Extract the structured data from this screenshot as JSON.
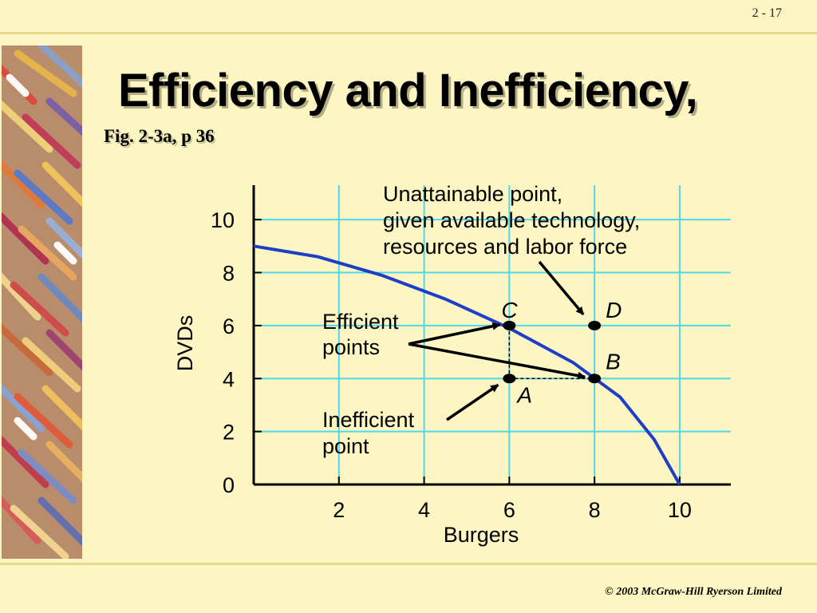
{
  "slide": {
    "number": "2 - 17",
    "title": "Efficiency and Inefficiency,",
    "subtitle": "Fig. 2-3a, p 36",
    "copyright": "© 2003 McGraw-Hill Ryerson Limited"
  },
  "colors": {
    "background": "#fdf6c3",
    "curve": "#1d3fc7",
    "grid": "#4fd8ea",
    "axis": "#000000"
  },
  "chart_data": {
    "type": "line",
    "title": "",
    "xlabel": "Burgers",
    "ylabel": "DVDs",
    "xlim": [
      0,
      11.2
    ],
    "ylim": [
      0,
      11.3
    ],
    "xticks": [
      2,
      4,
      6,
      8,
      10
    ],
    "yticks": [
      0,
      2,
      4,
      6,
      8,
      10
    ],
    "grid": true,
    "series": [
      {
        "values_x": [
          0,
          1.5,
          3,
          4.5,
          6,
          7.5,
          8.6,
          9.4,
          10
        ],
        "values_y": [
          9,
          8.6,
          7.9,
          7,
          5.9,
          4.6,
          3.3,
          1.7,
          0
        ]
      }
    ],
    "points": [
      {
        "label": "C",
        "x": 6,
        "y": 6
      },
      {
        "label": "D",
        "x": 8,
        "y": 6
      },
      {
        "label": "B",
        "x": 8,
        "y": 4
      },
      {
        "label": "A",
        "x": 6,
        "y": 4
      }
    ],
    "annotations": {
      "unattainable": [
        "Unattainable point,",
        "given available technology,",
        "resources and labor force"
      ],
      "efficient": [
        "Efficient",
        "points"
      ],
      "inefficient": [
        "Inefficient",
        "point"
      ]
    }
  }
}
